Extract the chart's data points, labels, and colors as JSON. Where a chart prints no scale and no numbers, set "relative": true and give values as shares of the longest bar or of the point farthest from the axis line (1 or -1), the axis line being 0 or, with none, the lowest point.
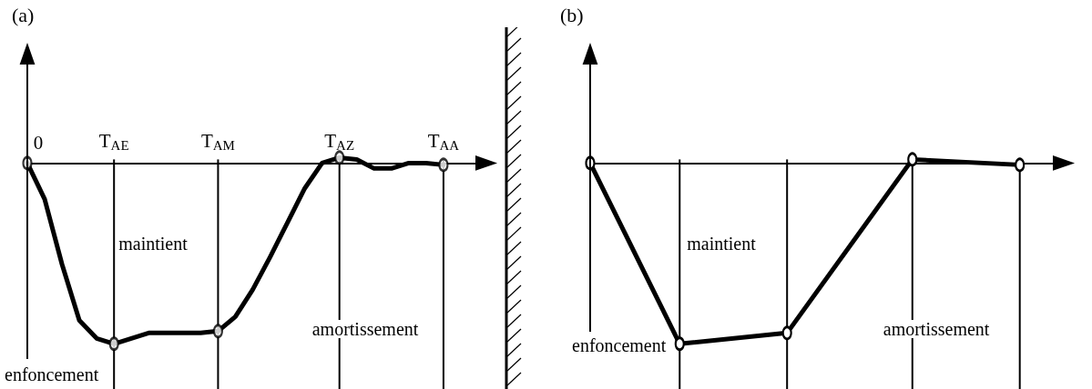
{
  "chart_data": [
    {
      "type": "line",
      "title": "(a)",
      "relative": true,
      "tick_labels": "x",
      "grid": "x",
      "marker": "none",
      "line_style": "solid",
      "categories": [
        "0",
        null,
        null,
        null,
        null,
        "T$_{AE}$",
        null,
        null,
        null,
        null,
        null,
        "T$_{AM}$",
        null,
        null,
        null,
        null,
        null,
        null,
        "T$_{AZ}$",
        null,
        null,
        null,
        null,
        null,
        "T$_{AA}$",
        null,
        null
      ],
      "series": [
        {
          "color": "#000000",
          "values": [
            0,
            -0.2,
            -0.56,
            -0.87,
            -0.97,
            -1,
            -0.97,
            -0.94,
            -0.94,
            -0.94,
            -0.94,
            -0.93,
            -0.85,
            -0.7,
            -0.52,
            -0.33,
            -0.14,
            0,
            0.03,
            0.02,
            -0.03,
            -0.03,
            0,
            0,
            -0.01,
            null,
            null
          ]
        },
        {
          "type": "scatter",
          "color": "#000000",
          "marker": "circle",
          "values": [
            0,
            null,
            null,
            null,
            null,
            -1,
            null,
            null,
            null,
            null,
            null,
            -0.93,
            null,
            null,
            null,
            null,
            null,
            null,
            0.03,
            null,
            null,
            null,
            null,
            null,
            -0.01,
            null,
            null
          ]
        }
      ],
      "annotations": [
        "enfoncement",
        "maintient",
        "amortissement"
      ]
    },
    {
      "type": "line",
      "title": "(b)",
      "relative": true,
      "tick_labels": false,
      "grid": "x",
      "marker": "circle",
      "line_style": "solid",
      "categories": [
        null,
        null,
        null,
        null,
        null,
        null,
        null,
        null,
        null,
        null,
        null,
        null,
        null,
        null,
        null,
        null,
        null,
        null,
        null,
        null,
        null,
        null,
        null,
        null,
        null,
        null,
        null
      ],
      "series": [
        {
          "color": "#000000",
          "values": [
            0,
            null,
            null,
            null,
            null,
            -1,
            null,
            null,
            null,
            null,
            null,
            -0.94,
            null,
            null,
            null,
            null,
            null,
            null,
            0.02,
            null,
            null,
            null,
            null,
            null,
            -0.01,
            null,
            null
          ]
        }
      ],
      "annotations": [
        "enfoncement",
        "maintient",
        "amortissement"
      ]
    }
  ]
}
